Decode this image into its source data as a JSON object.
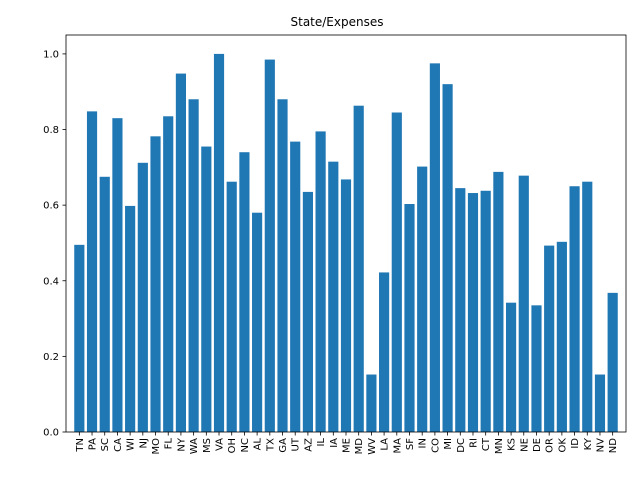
{
  "chart_data": {
    "type": "bar",
    "title": "State/Expenses",
    "xlabel": "",
    "ylabel": "",
    "ylim": [
      0,
      1.05
    ],
    "yticks": [
      0.0,
      0.2,
      0.4,
      0.6,
      0.8,
      1.0
    ],
    "ytick_labels": [
      "0.0",
      "0.2",
      "0.4",
      "0.6",
      "0.8",
      "1.0"
    ],
    "grid": false,
    "legend": "none",
    "bar_color": "#1f77b4",
    "categories": [
      "TN",
      "PA",
      "SC",
      "CA",
      "WI",
      "NJ",
      "MO",
      "FL",
      "NY",
      "WA",
      "MS",
      "VA",
      "OH",
      "NC",
      "AL",
      "TX",
      "GA",
      "UT",
      "AZ",
      "IL",
      "IA",
      "ME",
      "MD",
      "WV",
      "LA",
      "MA",
      "SF",
      "IN",
      "CO",
      "MI",
      "DC",
      "RI",
      "CT",
      "MN",
      "KS",
      "NE",
      "DE",
      "OR",
      "OK",
      "ID",
      "KY",
      "NV",
      "ND"
    ],
    "values": [
      0.495,
      0.848,
      0.675,
      0.83,
      0.598,
      0.712,
      0.782,
      0.835,
      0.948,
      0.88,
      0.755,
      1.0,
      0.662,
      0.74,
      0.58,
      0.985,
      0.88,
      0.768,
      0.635,
      0.795,
      0.715,
      0.668,
      0.863,
      0.152,
      0.422,
      0.845,
      0.603,
      0.702,
      0.975,
      0.92,
      0.645,
      0.632,
      0.638,
      0.688,
      0.342,
      0.678,
      0.335,
      0.493,
      0.503,
      0.65,
      0.662,
      0.152,
      0.368
    ]
  }
}
